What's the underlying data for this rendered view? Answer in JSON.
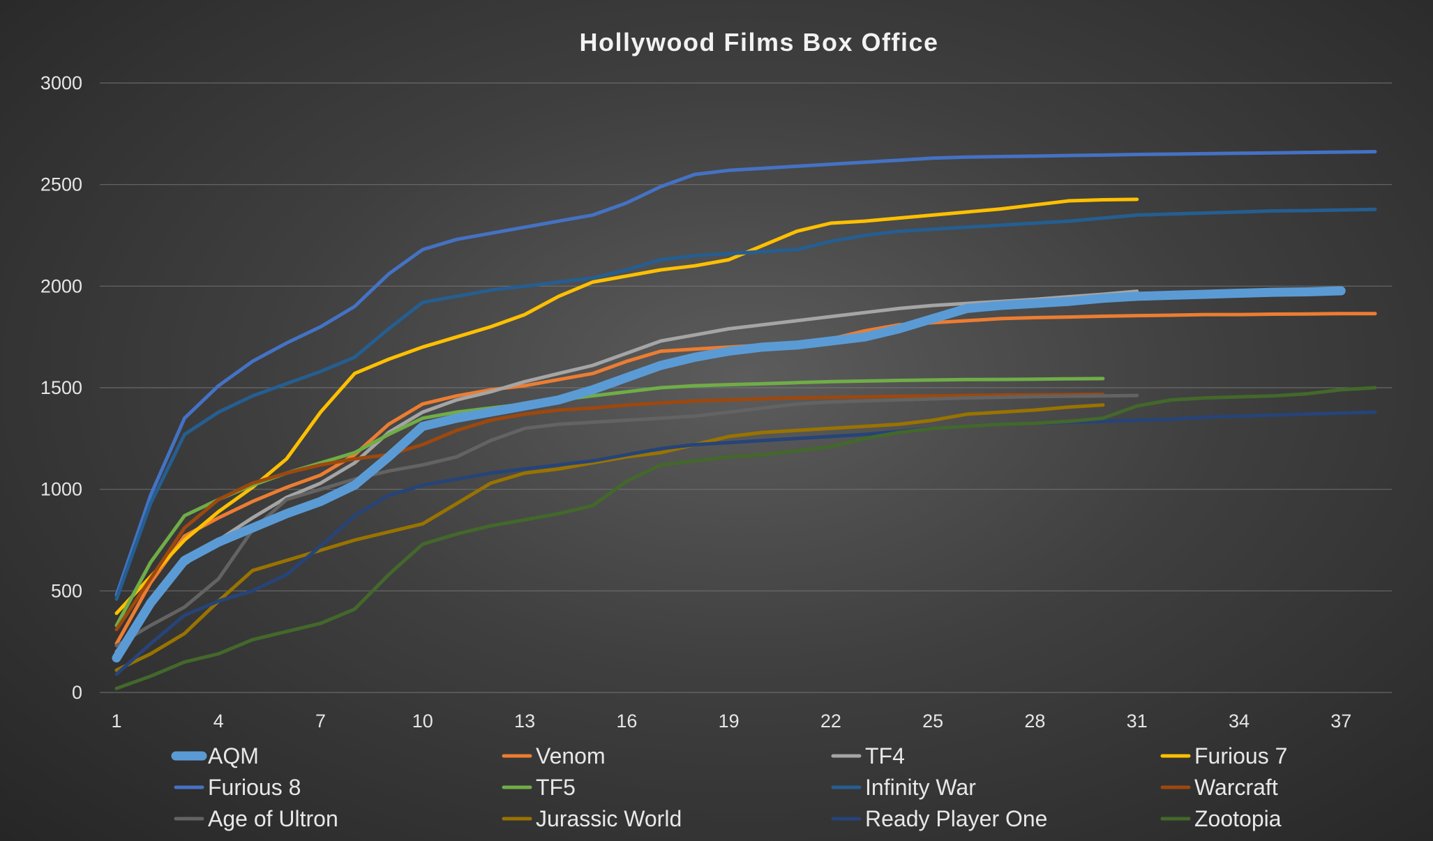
{
  "chart_data": {
    "type": "line",
    "title": "Hollywood Films Box Office",
    "xlabel": "",
    "ylabel": "",
    "xlim": [
      1,
      38
    ],
    "ylim": [
      0,
      3000
    ],
    "yticks": [
      0,
      500,
      1000,
      1500,
      2000,
      2500,
      3000
    ],
    "xticks": [
      1,
      4,
      7,
      10,
      13,
      16,
      19,
      22,
      25,
      28,
      31,
      34,
      37
    ],
    "grid": true,
    "legend_position": "bottom",
    "series": [
      {
        "name": "AQM",
        "color": "#5b9bd5",
        "emphasis": true,
        "values": [
          170,
          440,
          650,
          740,
          810,
          880,
          940,
          1020,
          1160,
          1310,
          1350,
          1380,
          1410,
          1440,
          1490,
          1550,
          1610,
          1650,
          1680,
          1700,
          1710,
          1730,
          1750,
          1790,
          1840,
          1890,
          1905,
          1915,
          1925,
          1940,
          1950,
          1955,
          1960,
          1965,
          1970,
          1972,
          1977
        ]
      },
      {
        "name": "Venom",
        "color": "#ed7d31",
        "values": [
          240,
          540,
          770,
          860,
          940,
          1010,
          1070,
          1170,
          1320,
          1420,
          1460,
          1490,
          1510,
          1540,
          1570,
          1630,
          1680,
          1690,
          1700,
          1710,
          1720,
          1740,
          1780,
          1810,
          1820,
          1830,
          1840,
          1845,
          1848,
          1852,
          1855,
          1857,
          1860,
          1860,
          1862,
          1863,
          1865,
          1865
        ]
      },
      {
        "name": "TF4",
        "color": "#a5a5a5",
        "values": [
          200,
          420,
          630,
          750,
          860,
          960,
          1030,
          1130,
          1280,
          1380,
          1440,
          1480,
          1530,
          1570,
          1610,
          1670,
          1730,
          1760,
          1790,
          1810,
          1830,
          1850,
          1870,
          1890,
          1905,
          1915,
          1925,
          1935,
          1948,
          1960,
          1975
        ]
      },
      {
        "name": "Furious 7",
        "color": "#ffc000",
        "values": [
          390,
          570,
          750,
          890,
          1010,
          1150,
          1380,
          1570,
          1640,
          1700,
          1750,
          1800,
          1860,
          1950,
          2020,
          2050,
          2080,
          2100,
          2130,
          2200,
          2270,
          2310,
          2320,
          2335,
          2350,
          2365,
          2380,
          2400,
          2420,
          2425,
          2427
        ]
      },
      {
        "name": "Furious 8",
        "color": "#4472c4",
        "values": [
          480,
          970,
          1350,
          1510,
          1630,
          1720,
          1800,
          1900,
          2060,
          2180,
          2230,
          2260,
          2290,
          2320,
          2350,
          2410,
          2490,
          2550,
          2570,
          2580,
          2590,
          2600,
          2610,
          2620,
          2630,
          2635,
          2638,
          2640,
          2643,
          2645,
          2648,
          2650,
          2652,
          2654,
          2656,
          2658,
          2660,
          2662
        ]
      },
      {
        "name": "TF5",
        "color": "#70ad47",
        "values": [
          330,
          640,
          870,
          950,
          1020,
          1080,
          1130,
          1180,
          1270,
          1350,
          1380,
          1400,
          1420,
          1440,
          1460,
          1480,
          1500,
          1510,
          1515,
          1520,
          1525,
          1530,
          1533,
          1536,
          1538,
          1540,
          1541,
          1542,
          1544,
          1545
        ]
      },
      {
        "name": "Infinity War",
        "color": "#255e91",
        "values": [
          460,
          930,
          1270,
          1380,
          1460,
          1520,
          1580,
          1650,
          1790,
          1920,
          1950,
          1980,
          2000,
          2020,
          2040,
          2080,
          2130,
          2150,
          2160,
          2170,
          2180,
          2220,
          2250,
          2270,
          2280,
          2290,
          2300,
          2310,
          2320,
          2335,
          2350,
          2355,
          2360,
          2365,
          2370,
          2372,
          2375,
          2378
        ]
      },
      {
        "name": "Warcraft",
        "color": "#9e480e",
        "values": [
          310,
          560,
          810,
          950,
          1030,
          1080,
          1120,
          1150,
          1170,
          1220,
          1290,
          1340,
          1370,
          1390,
          1400,
          1415,
          1425,
          1435,
          1440,
          1445,
          1450,
          1453,
          1455,
          1458,
          1460,
          1462,
          1464,
          1465,
          1466,
          1467
        ]
      },
      {
        "name": "Age of Ultron",
        "color": "#636363",
        "values": [
          230,
          330,
          420,
          560,
          800,
          950,
          1000,
          1050,
          1090,
          1120,
          1160,
          1240,
          1300,
          1320,
          1330,
          1340,
          1350,
          1360,
          1380,
          1400,
          1420,
          1430,
          1435,
          1440,
          1445,
          1450,
          1453,
          1456,
          1458,
          1460,
          1462
        ]
      },
      {
        "name": "Jurassic World",
        "color": "#997300",
        "values": [
          110,
          190,
          290,
          450,
          600,
          650,
          700,
          750,
          790,
          830,
          930,
          1030,
          1080,
          1100,
          1130,
          1160,
          1180,
          1220,
          1260,
          1280,
          1290,
          1300,
          1310,
          1320,
          1340,
          1370,
          1380,
          1390,
          1405,
          1415
        ]
      },
      {
        "name": "Ready Player One",
        "color": "#264478",
        "values": [
          90,
          240,
          380,
          450,
          500,
          580,
          720,
          870,
          970,
          1020,
          1050,
          1080,
          1100,
          1120,
          1140,
          1170,
          1200,
          1220,
          1230,
          1240,
          1250,
          1260,
          1270,
          1285,
          1300,
          1310,
          1320,
          1325,
          1330,
          1335,
          1340,
          1345,
          1355,
          1360,
          1365,
          1370,
          1375,
          1380
        ]
      },
      {
        "name": "Zootopia",
        "color": "#43682b",
        "values": [
          20,
          80,
          150,
          190,
          260,
          300,
          340,
          410,
          580,
          730,
          780,
          820,
          850,
          880,
          920,
          1040,
          1120,
          1140,
          1160,
          1170,
          1190,
          1210,
          1250,
          1280,
          1300,
          1310,
          1320,
          1325,
          1335,
          1350,
          1410,
          1440,
          1450,
          1455,
          1460,
          1470,
          1490,
          1500
        ]
      }
    ]
  }
}
